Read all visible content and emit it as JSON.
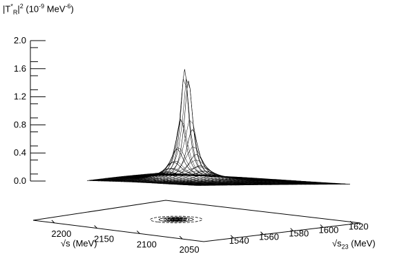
{
  "chart_data": {
    "type": "surface",
    "zlabel": {
      "pre": "|T",
      "sup1": "*",
      "sub1": "R",
      "mid": "|",
      "sup2": "2",
      "post1": " (10",
      "sup3": "-9",
      "post2": " MeV",
      "sup4": "-6",
      "post3": ")"
    },
    "xlabel": "√s (MeV)",
    "ylabel": {
      "pre": "√s",
      "sub": "23",
      "post": " (MeV)"
    },
    "z_ticks": [
      "2.0",
      "1.6",
      "1.2",
      "0.8",
      "0.4",
      "0.0"
    ],
    "z_tick_values": [
      2.0,
      1.6,
      1.2,
      0.8,
      0.4,
      0.0
    ],
    "zlim": [
      0,
      2.0
    ],
    "x_ticks": [
      "2200",
      "2150",
      "2100",
      "2050"
    ],
    "x_tick_values": [
      2200,
      2150,
      2100,
      2050
    ],
    "y_ticks": [
      "1540",
      "1560",
      "1580",
      "1600",
      "1620"
    ],
    "y_tick_values": [
      1540,
      1560,
      1580,
      1600,
      1620
    ],
    "peak": {
      "sqrt_s": 2110,
      "sqrt_s23": 1560,
      "value": 1.7
    },
    "contour_levels": 8,
    "line_color": "#000000"
  }
}
